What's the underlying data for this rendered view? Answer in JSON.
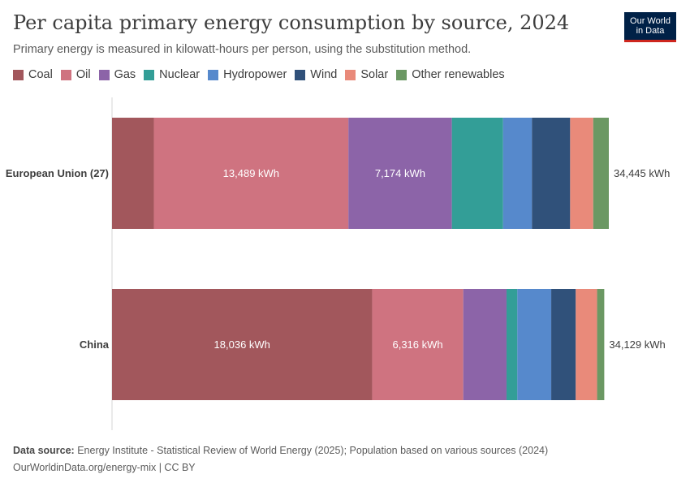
{
  "header": {
    "title": "Per capita primary energy consumption by source, 2024",
    "subtitle": "Primary energy is measured in kilowatt-hours per person, using the substitution method.",
    "logo_line1": "Our World",
    "logo_line2": "in Data"
  },
  "legend": [
    {
      "label": "Coal",
      "color": "#a2575c"
    },
    {
      "label": "Oil",
      "color": "#cf7380"
    },
    {
      "label": "Gas",
      "color": "#8c64a8"
    },
    {
      "label": "Nuclear",
      "color": "#339e97"
    },
    {
      "label": "Hydropower",
      "color": "#5689cc"
    },
    {
      "label": "Wind",
      "color": "#30517a"
    },
    {
      "label": "Solar",
      "color": "#e98a7a"
    },
    {
      "label": "Other renewables",
      "color": "#6b9863"
    }
  ],
  "chart_data": {
    "type": "bar",
    "orientation": "horizontal",
    "stacked": true,
    "units": "kWh",
    "categories": [
      "European Union (27)",
      "China"
    ],
    "series": [
      {
        "name": "Coal",
        "values": [
          2900,
          18036
        ]
      },
      {
        "name": "Oil",
        "values": [
          13489,
          6316
        ]
      },
      {
        "name": "Gas",
        "values": [
          7174,
          3000
        ]
      },
      {
        "name": "Nuclear",
        "values": [
          3550,
          750
        ]
      },
      {
        "name": "Hydropower",
        "values": [
          2000,
          2350
        ]
      },
      {
        "name": "Wind",
        "values": [
          2650,
          1700
        ]
      },
      {
        "name": "Solar",
        "values": [
          1600,
          1480
        ]
      },
      {
        "name": "Other renewables",
        "values": [
          1082,
          497
        ]
      }
    ],
    "data_labels": [
      {
        "category": "European Union (27)",
        "series": "Oil",
        "text": "13,489 kWh"
      },
      {
        "category": "European Union (27)",
        "series": "Gas",
        "text": "7,174 kWh"
      },
      {
        "category": "China",
        "series": "Coal",
        "text": "18,036 kWh"
      },
      {
        "category": "China",
        "series": "Oil",
        "text": "6,316 kWh"
      }
    ],
    "totals": [
      {
        "category": "European Union (27)",
        "value": 34445,
        "text": "34,445 kWh"
      },
      {
        "category": "China",
        "value": 34129,
        "text": "34,129 kWh"
      }
    ],
    "grid": false,
    "legend_position": "top-left"
  },
  "footer": {
    "source_label": "Data source:",
    "source_text": " Energy Institute - Statistical Review of World Energy (2025); Population based on various sources (2024)",
    "url_license": "OurWorldinData.org/energy-mix | CC BY"
  }
}
